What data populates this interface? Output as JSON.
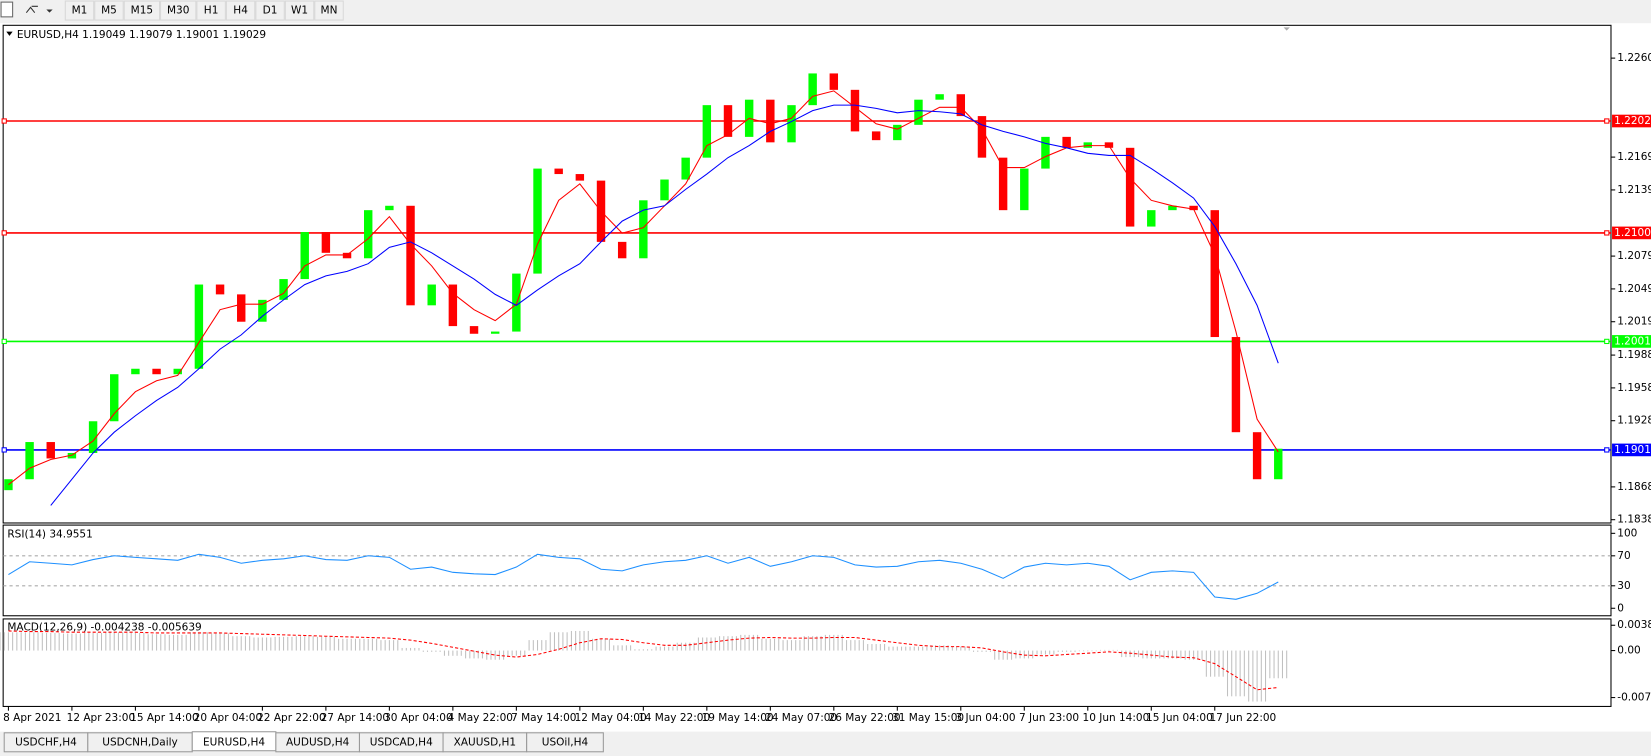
{
  "toolbar": {
    "timeframes": [
      "M1",
      "M5",
      "M15",
      "M30",
      "H1",
      "H4",
      "D1",
      "W1",
      "MN"
    ]
  },
  "tabs": {
    "items": [
      "USDCHF,H4",
      "USDCNH,Daily",
      "EURUSD,H4",
      "AUDUSD,H4",
      "USDCAD,H4",
      "XAUUSD,H1",
      "USOil,H4"
    ],
    "active": 2
  },
  "chart_data": [
    {
      "type": "candlestick",
      "title": "EURUSD,H4  1.19049 1.19079 1.19001 1.19029",
      "categories": [
        "8 Apr 2021",
        null,
        null,
        "12 Apr 23:00",
        null,
        null,
        "15 Apr 14:00",
        null,
        null,
        "20 Apr 04:00",
        null,
        null,
        "22 Apr 22:00",
        null,
        null,
        "27 Apr 14:00",
        null,
        null,
        "30 Apr 04:00",
        null,
        null,
        "4 May 22:00",
        null,
        null,
        "7 May 14:00",
        null,
        null,
        "12 May 04:00",
        null,
        null,
        "14 May 22:00",
        null,
        null,
        "19 May 14:00",
        null,
        null,
        "24 May 07:00",
        null,
        null,
        "26 May 22:00",
        null,
        null,
        "31 May 15:00",
        null,
        null,
        "3 Jun 04:00",
        null,
        null,
        "7 Jun 23:00",
        null,
        null,
        "10 Jun 14:00",
        null,
        null,
        "15 Jun 04:00",
        null,
        null,
        "17 Jun 22:00",
        null,
        null,
        null
      ],
      "open": [
        1.1865,
        1.1875,
        1.1909,
        1.1894,
        1.1899,
        1.1928,
        1.1971,
        1.1976,
        1.1971,
        1.1976,
        1.2053,
        1.2044,
        1.2019,
        1.2039,
        1.2058,
        1.2101,
        1.2082,
        1.2077,
        1.2121,
        1.2125,
        1.2034,
        1.2053,
        1.2015,
        1.2008,
        1.201,
        1.2063,
        1.2159,
        1.2154,
        1.2148,
        1.2092,
        1.2077,
        1.213,
        1.2149,
        1.2169,
        1.2217,
        1.2188,
        1.2222,
        1.2183,
        1.2217,
        1.2246,
        1.2231,
        1.2193,
        1.2185,
        1.2199,
        1.2222,
        1.2227,
        1.2207,
        1.2169,
        1.2121,
        1.2159,
        1.2188,
        1.2178,
        1.2183,
        1.2178,
        1.2106,
        1.2121,
        1.2125,
        1.2121,
        1.2005,
        1.1918,
        1.1875
      ],
      "close": [
        1.1875,
        1.1909,
        1.1894,
        1.1899,
        1.1928,
        1.1971,
        1.1976,
        1.1971,
        1.1976,
        1.2053,
        1.2044,
        1.2019,
        1.2039,
        1.2058,
        1.2101,
        1.2082,
        1.2077,
        1.2121,
        1.2125,
        1.2034,
        1.2053,
        1.2015,
        1.2008,
        1.201,
        1.2063,
        1.2159,
        1.2154,
        1.2148,
        1.2092,
        1.2077,
        1.213,
        1.2149,
        1.2169,
        1.2217,
        1.2188,
        1.2222,
        1.2183,
        1.2217,
        1.2246,
        1.2231,
        1.2193,
        1.2185,
        1.2199,
        1.2222,
        1.2227,
        1.2207,
        1.2169,
        1.2121,
        1.2159,
        1.2188,
        1.2178,
        1.2183,
        1.2178,
        1.2106,
        1.2121,
        1.2125,
        1.2121,
        1.2005,
        1.1918,
        1.1875,
        1.19029
      ],
      "up_color": "#00ff00",
      "down_color": "#ff0000",
      "series": [
        {
          "color": "#ff0000",
          "values": [
            1.187,
            1.1885,
            1.1893,
            1.1897,
            1.191,
            1.1935,
            1.1955,
            1.1965,
            1.197,
            1.2,
            1.203,
            1.2035,
            1.2035,
            1.2045,
            1.207,
            1.208,
            1.208,
            1.2095,
            1.2115,
            1.209,
            1.207,
            1.2045,
            1.203,
            1.202,
            1.2035,
            1.209,
            1.213,
            1.2145,
            1.212,
            1.21,
            1.2105,
            1.2125,
            1.2145,
            1.218,
            1.219,
            1.2205,
            1.22,
            1.2205,
            1.2225,
            1.223,
            1.2215,
            1.22,
            1.2195,
            1.2205,
            1.2215,
            1.2215,
            1.2195,
            1.216,
            1.216,
            1.217,
            1.2178,
            1.218,
            1.218,
            1.215,
            1.213,
            1.2125,
            1.2122,
            1.208,
            1.201,
            1.193,
            1.19
          ]
        },
        {
          "color": "#0000ff",
          "values": [
            null,
            null,
            1.1851,
            1.1875,
            1.1899,
            1.1918,
            1.1933,
            1.1947,
            1.1959,
            1.1976,
            1.1994,
            1.2007,
            1.2024,
            1.2039,
            1.2053,
            1.2061,
            1.2065,
            1.2072,
            1.2087,
            1.2092,
            1.2082,
            1.207,
            1.2058,
            1.2044,
            1.2034,
            1.2048,
            1.2061,
            1.2072,
            1.2092,
            1.2111,
            1.2121,
            1.2125,
            1.214,
            1.2154,
            1.2169,
            1.218,
            1.2193,
            1.2202,
            1.2212,
            1.2217,
            1.2217,
            1.2214,
            1.221,
            1.2212,
            1.2211,
            1.2209,
            1.2199,
            1.2193,
            1.2188,
            1.2182,
            1.2178,
            1.2173,
            1.2171,
            1.2171,
            1.2159,
            1.2146,
            1.2132,
            1.2106,
            1.2072,
            1.2034,
            1.1981
          ]
        }
      ],
      "levels": [
        {
          "price": 1.22025,
          "color": "#ff0000"
        },
        {
          "price": 1.21002,
          "color": "#ff0000"
        },
        {
          "price": {
            "value": 1.2001,
            "label": "1.20010"
          },
          "color": "#00ff00"
        },
        {
          "price": 1.19018,
          "color": "#0000ff"
        }
      ],
      "ylim": [
        1.1835,
        1.229
      ],
      "yticks": [
        {
          "value": 1.226,
          "label": "1.22600"
        },
        1.21695,
        1.21395,
        {
          "value": 1.2079,
          "label": "1.20790"
        },
        {
          "value": 1.2049,
          "label": "1.20490"
        },
        {
          "value": 1.2019,
          "label": "1.20190"
        },
        1.19885,
        1.19585,
        1.19285,
        {
          "value": 1.1868,
          "label": "1.18680"
        },
        {
          "value": 1.1838,
          "label": "1.18380"
        }
      ]
    },
    {
      "type": "line",
      "title": "RSI(14) 34.9551",
      "series": [
        {
          "color": "#1e90ff",
          "values": [
            45,
            62,
            60,
            58,
            65,
            70,
            68,
            66,
            64,
            72,
            68,
            60,
            64,
            66,
            70,
            65,
            64,
            70,
            68,
            52,
            55,
            48,
            46,
            45,
            55,
            72,
            68,
            66,
            52,
            50,
            58,
            62,
            64,
            70,
            60,
            68,
            56,
            62,
            70,
            68,
            58,
            55,
            56,
            62,
            64,
            60,
            52,
            40,
            55,
            60,
            58,
            60,
            56,
            38,
            48,
            50,
            48,
            15,
            12,
            20,
            35
          ]
        }
      ],
      "levels": [
        70,
        30
      ],
      "ylim": [
        -10,
        111
      ],
      "yticks": [
        100,
        70,
        30,
        0
      ]
    },
    {
      "type": "macd",
      "title": "MACD(12,26,9) -0.004238 -0.005639",
      "histogram": {
        "color": "#c0c0c0",
        "values": [
          0.0028,
          0.0028,
          0.0027,
          0.0026,
          0.0027,
          0.0028,
          0.0027,
          0.0025,
          0.0024,
          0.0028,
          0.0026,
          0.0022,
          0.002,
          0.0021,
          0.0022,
          0.0021,
          0.0018,
          0.0018,
          0.0016,
          0.0004,
          -0.0002,
          -0.0008,
          -0.0012,
          -0.0014,
          -0.0008,
          0.0016,
          0.0028,
          0.003,
          0.0018,
          0.0008,
          0.0002,
          0.0006,
          0.0012,
          0.002,
          0.0022,
          0.0024,
          0.0018,
          0.0016,
          0.0022,
          0.0024,
          0.0016,
          0.001,
          0.0006,
          0.0006,
          0.0008,
          0.0006,
          -0.0002,
          -0.0014,
          -0.0012,
          -0.0006,
          -0.0002,
          -0.0001,
          0.0001,
          -0.001,
          -0.0012,
          -0.0012,
          -0.0014,
          -0.004,
          -0.007,
          -0.0078,
          -0.004238
        ]
      },
      "signal": {
        "color": "#ff0000",
        "values": [
          0.003,
          0.0029,
          0.0029,
          0.0028,
          0.0028,
          0.0028,
          0.0028,
          0.0027,
          0.0027,
          0.0027,
          0.0027,
          0.0026,
          0.0025,
          0.0024,
          0.0023,
          0.0022,
          0.0021,
          0.002,
          0.0019,
          0.0016,
          0.0011,
          0.0005,
          -0.0001,
          -0.0007,
          -0.001,
          -0.0006,
          0.0002,
          0.0012,
          0.0018,
          0.0017,
          0.0012,
          0.0008,
          0.0008,
          0.0012,
          0.0016,
          0.0019,
          0.002,
          0.0019,
          0.0019,
          0.002,
          0.002,
          0.0016,
          0.0012,
          0.0008,
          0.0006,
          0.0006,
          0.0004,
          -0.0002,
          -0.0007,
          -0.0008,
          -0.0006,
          -0.0004,
          -0.0002,
          -0.0004,
          -0.0007,
          -0.001,
          -0.0011,
          -0.002,
          -0.004,
          -0.006,
          -0.005639
        ]
      },
      "ylim": [
        -0.00855,
        0.00484
      ],
      "yticks": [
        0.003873,
        {
          "value": 0,
          "label": "0.00"
        },
        -0.00719
      ]
    }
  ]
}
